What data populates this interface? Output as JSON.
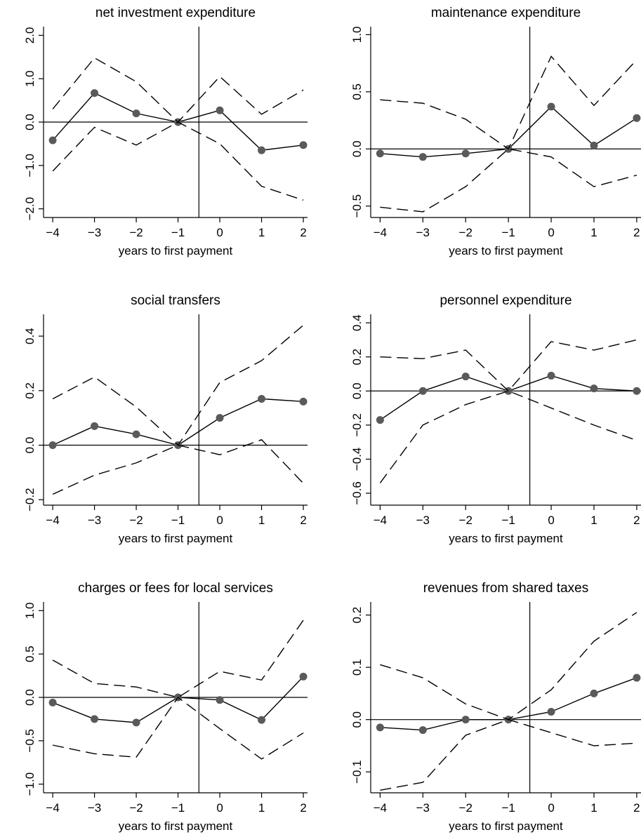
{
  "figure": {
    "xlabel": "years to first payment",
    "colors": {
      "line": "#000000",
      "marker": "#5a5a5a",
      "axis": "#000000"
    }
  },
  "chart_data": [
    {
      "type": "line",
      "title": "net investment expenditure",
      "xlabel": "years to first payment",
      "ylabel": "",
      "x": [
        -4,
        -3,
        -2,
        -1,
        0,
        1,
        2
      ],
      "xticks": [
        -4,
        -3,
        -2,
        -1,
        0,
        1,
        2
      ],
      "ylim": [
        -2.2,
        2.2
      ],
      "yticks": [
        -2,
        -1,
        0,
        1,
        2
      ],
      "ytick_labels": [
        "−2.0",
        "−1.0",
        "0.0",
        "1.0",
        "2.0"
      ],
      "vline_x": -0.5,
      "hline_y": 0,
      "series": [
        {
          "role": "estimate",
          "values": [
            -0.42,
            0.67,
            0.2,
            0.0,
            0.27,
            -0.65,
            -0.53
          ]
        },
        {
          "role": "upper_ci",
          "values": [
            0.3,
            1.48,
            0.93,
            0.0,
            1.05,
            0.18,
            0.74
          ]
        },
        {
          "role": "lower_ci",
          "values": [
            -1.13,
            -0.12,
            -0.53,
            0.0,
            -0.5,
            -1.48,
            -1.8
          ]
        }
      ]
    },
    {
      "type": "line",
      "title": "maintenance expenditure",
      "xlabel": "years to first payment",
      "ylabel": "",
      "x": [
        -4,
        -3,
        -2,
        -1,
        0,
        1,
        2
      ],
      "xticks": [
        -4,
        -3,
        -2,
        -1,
        0,
        1,
        2
      ],
      "ylim": [
        -0.6,
        1.07
      ],
      "yticks": [
        -0.5,
        0,
        0.5,
        1
      ],
      "ytick_labels": [
        "−0.5",
        "0.0",
        "0.5",
        "1.0"
      ],
      "vline_x": -0.5,
      "hline_y": 0,
      "series": [
        {
          "role": "estimate",
          "values": [
            -0.04,
            -0.07,
            -0.04,
            0.0,
            0.37,
            0.03,
            0.27
          ]
        },
        {
          "role": "upper_ci",
          "values": [
            0.43,
            0.4,
            0.26,
            0.0,
            0.81,
            0.38,
            0.78
          ]
        },
        {
          "role": "lower_ci",
          "values": [
            -0.51,
            -0.55,
            -0.33,
            0.0,
            -0.07,
            -0.33,
            -0.23
          ]
        }
      ]
    },
    {
      "type": "line",
      "title": "social transfers",
      "xlabel": "years to first payment",
      "ylabel": "",
      "x": [
        -4,
        -3,
        -2,
        -1,
        0,
        1,
        2
      ],
      "xticks": [
        -4,
        -3,
        -2,
        -1,
        0,
        1,
        2
      ],
      "ylim": [
        -0.22,
        0.48
      ],
      "yticks": [
        -0.2,
        0,
        0.2,
        0.4
      ],
      "ytick_labels": [
        "−0.2",
        "0.0",
        "0.2",
        "0.4"
      ],
      "vline_x": -0.5,
      "hline_y": 0,
      "series": [
        {
          "role": "estimate",
          "values": [
            0.0,
            0.07,
            0.04,
            0.0,
            0.1,
            0.17,
            0.16
          ]
        },
        {
          "role": "upper_ci",
          "values": [
            0.17,
            0.25,
            0.14,
            0.0,
            0.23,
            0.31,
            0.44
          ]
        },
        {
          "role": "lower_ci",
          "values": [
            -0.18,
            -0.11,
            -0.065,
            0.0,
            -0.035,
            0.02,
            -0.14
          ]
        }
      ]
    },
    {
      "type": "line",
      "title": "personnel expenditure",
      "xlabel": "years to first payment",
      "ylabel": "",
      "x": [
        -4,
        -3,
        -2,
        -1,
        0,
        1,
        2
      ],
      "xticks": [
        -4,
        -3,
        -2,
        -1,
        0,
        1,
        2
      ],
      "ylim": [
        -0.67,
        0.45
      ],
      "yticks": [
        -0.6,
        -0.4,
        -0.2,
        0,
        0.2,
        0.4
      ],
      "ytick_labels": [
        "−0.6",
        "−0.4",
        "−0.2",
        "0.0",
        "0.2",
        "0.4"
      ],
      "vline_x": -0.5,
      "hline_y": 0,
      "series": [
        {
          "role": "estimate",
          "values": [
            -0.17,
            0.0,
            0.085,
            0.0,
            0.09,
            0.015,
            0.0
          ]
        },
        {
          "role": "upper_ci",
          "values": [
            0.2,
            0.19,
            0.24,
            0.0,
            0.29,
            0.24,
            0.3
          ]
        },
        {
          "role": "lower_ci",
          "values": [
            -0.54,
            -0.2,
            -0.08,
            0.0,
            -0.1,
            -0.2,
            -0.29
          ]
        }
      ]
    },
    {
      "type": "line",
      "title": "charges or fees for local services",
      "xlabel": "years to first payment",
      "ylabel": "",
      "x": [
        -4,
        -3,
        -2,
        -1,
        0,
        1,
        2
      ],
      "xticks": [
        -4,
        -3,
        -2,
        -1,
        0,
        1,
        2
      ],
      "ylim": [
        -1.1,
        1.1
      ],
      "yticks": [
        -1,
        -0.5,
        0,
        0.5,
        1
      ],
      "ytick_labels": [
        "−1.0",
        "−0.5",
        "0.0",
        "0.5",
        "1.0"
      ],
      "vline_x": -0.5,
      "hline_y": 0,
      "series": [
        {
          "role": "estimate",
          "values": [
            -0.06,
            -0.25,
            -0.29,
            0.0,
            -0.03,
            -0.26,
            0.24
          ]
        },
        {
          "role": "upper_ci",
          "values": [
            0.43,
            0.16,
            0.12,
            0.0,
            0.3,
            0.2,
            0.89
          ]
        },
        {
          "role": "lower_ci",
          "values": [
            -0.55,
            -0.65,
            -0.69,
            0.0,
            -0.36,
            -0.71,
            -0.41
          ]
        }
      ]
    },
    {
      "type": "line",
      "title": "revenues from shared taxes",
      "xlabel": "years to first payment",
      "ylabel": "",
      "x": [
        -4,
        -3,
        -2,
        -1,
        0,
        1,
        2
      ],
      "xticks": [
        -4,
        -3,
        -2,
        -1,
        0,
        1,
        2
      ],
      "ylim": [
        -0.14,
        0.225
      ],
      "yticks": [
        -0.1,
        0,
        0.1,
        0.2
      ],
      "ytick_labels": [
        "−0.1",
        "0.0",
        "0.1",
        "0.2"
      ],
      "vline_x": -0.5,
      "hline_y": 0,
      "series": [
        {
          "role": "estimate",
          "values": [
            -0.015,
            -0.02,
            0.0,
            0.0,
            0.015,
            0.05,
            0.08
          ]
        },
        {
          "role": "upper_ci",
          "values": [
            0.105,
            0.08,
            0.03,
            0.0,
            0.057,
            0.15,
            0.205
          ]
        },
        {
          "role": "lower_ci",
          "values": [
            -0.135,
            -0.12,
            -0.03,
            0.0,
            -0.025,
            -0.05,
            -0.045
          ]
        }
      ]
    }
  ]
}
